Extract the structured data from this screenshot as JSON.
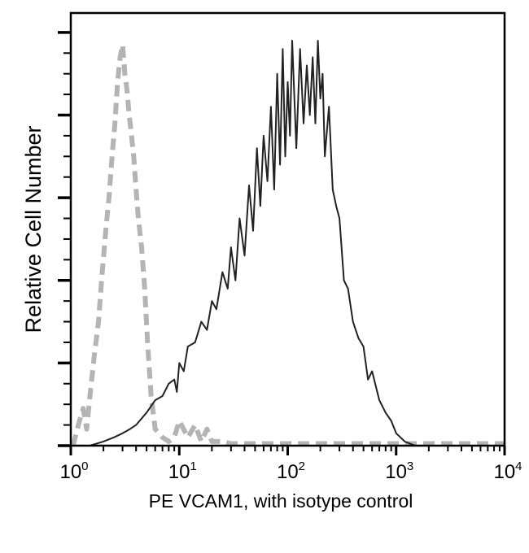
{
  "chart_data": {
    "type": "line",
    "title": "",
    "xlabel": "PE VCAM1, with isotype control",
    "ylabel": "Relative Cell Number",
    "x_scale": "log",
    "xlim": [
      1,
      10000
    ],
    "ylim": [
      0,
      104.7
    ],
    "y_tick_labels_shown": false,
    "x_ticks": [
      {
        "base": "10",
        "exp": "0",
        "value": 1
      },
      {
        "base": "10",
        "exp": "1",
        "value": 10
      },
      {
        "base": "10",
        "exp": "2",
        "value": 100
      },
      {
        "base": "10",
        "exp": "3",
        "value": 1000
      },
      {
        "base": "10",
        "exp": "4",
        "value": 10000
      }
    ],
    "y_major_ticks": [
      0,
      20,
      40,
      60,
      80,
      100
    ],
    "grid": false,
    "legend": "none",
    "series": [
      {
        "style": "dashed",
        "color": "#b4b4b4",
        "x": [
          1.05,
          1.2,
          1.3,
          1.4,
          1.5,
          1.65,
          1.8,
          1.95,
          2.1,
          2.25,
          2.4,
          2.55,
          2.7,
          2.85,
          3.0,
          3.15,
          3.3,
          3.45,
          3.6,
          3.8,
          4.0,
          4.2,
          4.5,
          4.8,
          5.1,
          5.5,
          6.0,
          7,
          8,
          9,
          10,
          12,
          14,
          16,
          18,
          20,
          25,
          30,
          50,
          100,
          1000,
          10000
        ],
        "y": [
          0,
          6,
          9,
          4,
          12,
          22,
          30,
          42,
          52,
          60,
          70,
          78,
          88,
          94,
          97,
          90,
          86,
          80,
          76,
          70,
          62,
          55,
          48,
          38,
          25,
          12,
          4,
          2,
          1,
          2,
          6,
          2,
          5,
          1,
          4,
          1,
          1,
          0.5,
          0.5,
          0.5,
          0.5,
          0.5
        ]
      },
      {
        "style": "solid",
        "color": "#222222",
        "x": [
          1.5,
          2,
          2.5,
          3,
          3.5,
          4,
          5,
          6,
          7,
          8,
          9,
          9.5,
          10,
          11,
          12,
          14,
          16,
          18,
          20,
          22,
          25,
          28,
          30,
          33,
          36,
          40,
          44,
          48,
          52,
          56,
          60,
          65,
          70,
          75,
          80,
          85,
          90,
          95,
          100,
          105,
          110,
          120,
          130,
          140,
          150,
          160,
          170,
          180,
          190,
          200,
          210,
          220,
          240,
          260,
          280,
          300,
          330,
          360,
          400,
          450,
          500,
          550,
          600,
          700,
          800,
          900,
          1000,
          1200,
          1500,
          2000,
          5000,
          10000
        ],
        "y": [
          0,
          1,
          2,
          3,
          4,
          5,
          8,
          11,
          12,
          15,
          16,
          13,
          20,
          18,
          24,
          25,
          30,
          28,
          35,
          33,
          42,
          38,
          48,
          40,
          55,
          46,
          63,
          52,
          72,
          58,
          75,
          64,
          82,
          62,
          90,
          68,
          96,
          70,
          88,
          75,
          98,
          72,
          96,
          78,
          92,
          80,
          94,
          78,
          98,
          84,
          90,
          70,
          82,
          62,
          58,
          55,
          40,
          38,
          30,
          26,
          24,
          16,
          18,
          11,
          8,
          6,
          3,
          1,
          0,
          0,
          0,
          0
        ]
      }
    ]
  }
}
